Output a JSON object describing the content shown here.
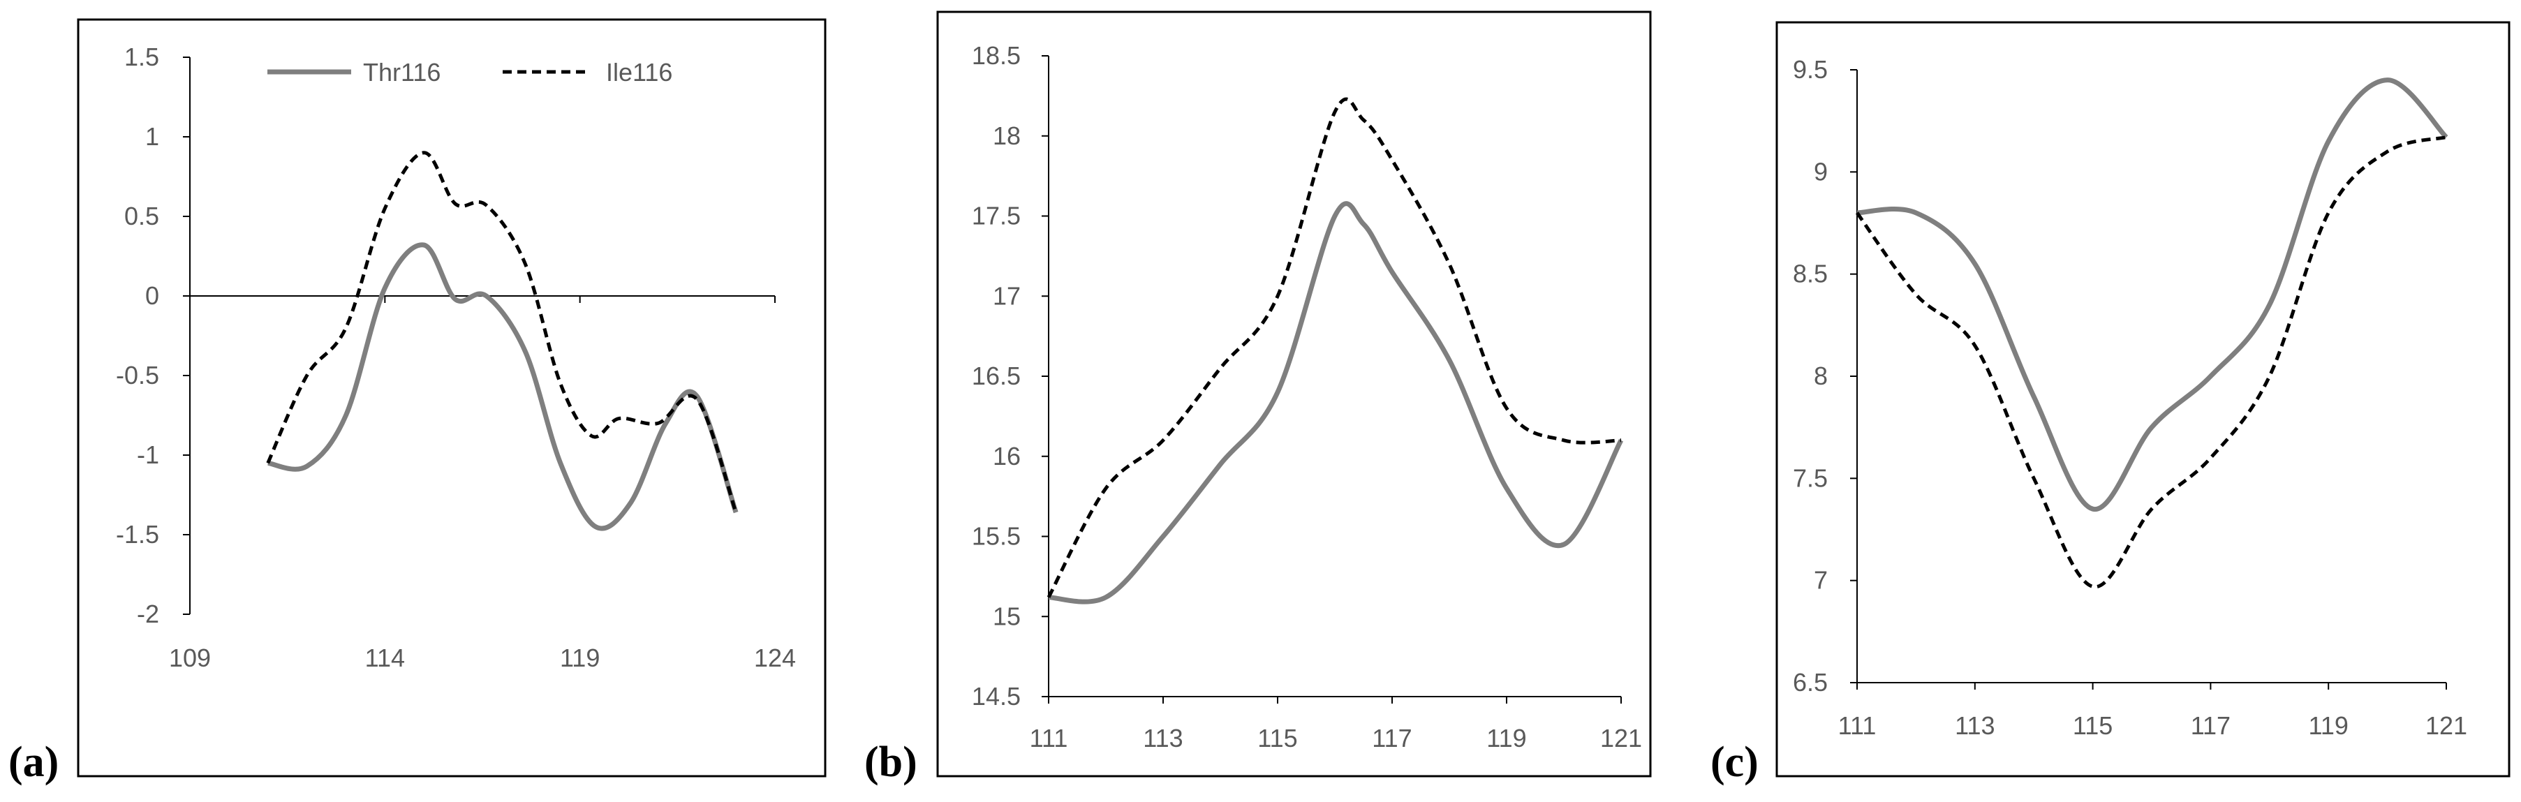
{
  "colors": {
    "thr": "#7f7f7f",
    "ile": "#000000",
    "axis": "#000000",
    "text": "#595959"
  },
  "legend": {
    "thr": "Thr116",
    "ile": "Ile116"
  },
  "chart_data": [
    {
      "type": "line",
      "panel_label": "(a)",
      "xlim": [
        109,
        124
      ],
      "ylim": [
        -2,
        1.5
      ],
      "x_ticks": [
        "109",
        "114",
        "119",
        "124"
      ],
      "y_ticks": [
        "1.5",
        "1",
        "0.5",
        "0",
        "-0.5",
        "-1",
        "-1.5",
        "-2"
      ],
      "legend_position": "top",
      "series": [
        {
          "name": "Thr116",
          "style": "solid",
          "x": [
            111,
            112,
            113,
            114,
            115,
            115.8,
            116.6,
            117.6,
            118.5,
            119.4,
            120.3,
            121.2,
            122,
            123
          ],
          "y": [
            -1.05,
            -1.07,
            -0.75,
            0.05,
            0.32,
            -0.02,
            0.0,
            -0.35,
            -1.05,
            -1.45,
            -1.3,
            -0.8,
            -0.63,
            -1.36
          ]
        },
        {
          "name": "Ile116",
          "style": "dashed",
          "x": [
            111,
            112,
            113,
            114,
            115,
            115.8,
            116.6,
            117.6,
            118.5,
            119.3,
            120,
            121,
            122,
            123
          ],
          "y": [
            -1.05,
            -0.5,
            -0.2,
            0.55,
            0.9,
            0.58,
            0.57,
            0.2,
            -0.55,
            -0.88,
            -0.77,
            -0.8,
            -0.65,
            -1.36
          ]
        }
      ]
    },
    {
      "type": "line",
      "panel_label": "(b)",
      "xlim": [
        111,
        121
      ],
      "ylim": [
        14.5,
        18.5
      ],
      "x_ticks": [
        "111",
        "113",
        "115",
        "117",
        "119",
        "121"
      ],
      "y_ticks": [
        "18.5",
        "18",
        "17.5",
        "17",
        "16.5",
        "16",
        "15.5",
        "15",
        "14.5"
      ],
      "series": [
        {
          "name": "Thr116",
          "style": "solid",
          "x": [
            111,
            112,
            113,
            114,
            115,
            116,
            116.5,
            117,
            118,
            119,
            120,
            121
          ],
          "y": [
            15.12,
            15.12,
            15.5,
            15.95,
            16.4,
            17.5,
            17.45,
            17.15,
            16.6,
            15.8,
            15.45,
            16.1
          ]
        },
        {
          "name": "Ile116",
          "style": "dashed",
          "x": [
            111,
            112,
            113,
            114,
            115,
            116,
            116.5,
            117,
            118,
            119,
            120,
            121
          ],
          "y": [
            15.12,
            15.8,
            16.1,
            16.55,
            17.0,
            18.15,
            18.1,
            17.85,
            17.2,
            16.3,
            16.1,
            16.1
          ]
        }
      ]
    },
    {
      "type": "line",
      "panel_label": "(c)",
      "xlim": [
        111,
        121
      ],
      "ylim": [
        6.5,
        9.5
      ],
      "x_ticks": [
        "111",
        "113",
        "115",
        "117",
        "119",
        "121"
      ],
      "y_ticks": [
        "9.5",
        "9",
        "8.5",
        "8",
        "7.5",
        "7",
        "6.5"
      ],
      "series": [
        {
          "name": "Thr116",
          "style": "solid",
          "x": [
            111,
            112,
            113,
            114,
            115,
            116,
            117,
            118,
            119,
            120,
            121
          ],
          "y": [
            8.8,
            8.8,
            8.55,
            7.9,
            7.35,
            7.75,
            8.0,
            8.35,
            9.15,
            9.45,
            9.17
          ]
        },
        {
          "name": "Ile116",
          "style": "dashed",
          "x": [
            111,
            112,
            113,
            114,
            115,
            116,
            117,
            118,
            119,
            120,
            121
          ],
          "y": [
            8.8,
            8.4,
            8.15,
            7.5,
            6.97,
            7.35,
            7.6,
            8.0,
            8.8,
            9.1,
            9.17
          ]
        }
      ]
    }
  ]
}
